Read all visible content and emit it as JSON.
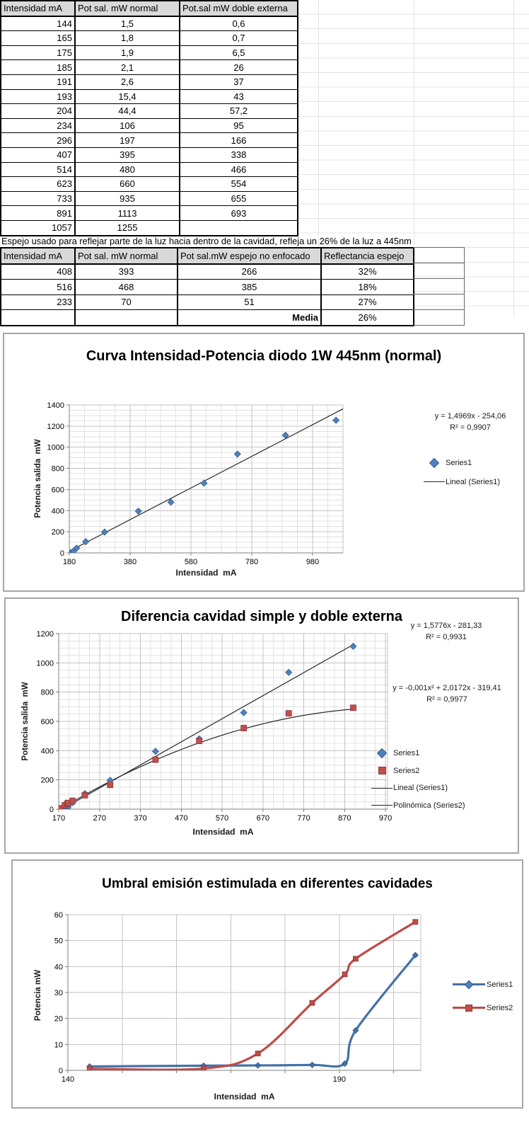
{
  "colors": {
    "series1": "#4F81BD",
    "series2": "#C0504D",
    "cell_gray": "#D9D9D9",
    "cell_blue": "#DCE6F1",
    "cell_pink": "#F2DCDB",
    "trendline": "#262626"
  },
  "table1": {
    "headers": [
      "Intensidad mA",
      "Pot sal. mW normal",
      "Pot.sal mW doble externa"
    ],
    "rows": [
      [
        "144",
        "1,5",
        "0,6"
      ],
      [
        "165",
        "1,8",
        "0,7"
      ],
      [
        "175",
        "1,9",
        "6,5"
      ],
      [
        "185",
        "2,1",
        "26"
      ],
      [
        "191",
        "2,6",
        "37"
      ],
      [
        "193",
        "15,4",
        "43"
      ],
      [
        "204",
        "44,4",
        "57,2"
      ],
      [
        "234",
        "106",
        "95"
      ],
      [
        "296",
        "197",
        "166"
      ],
      [
        "407",
        "395",
        "338"
      ],
      [
        "514",
        "480",
        "466"
      ],
      [
        "623",
        "660",
        "554"
      ],
      [
        "733",
        "935",
        "655"
      ],
      [
        "891",
        "1113",
        "693"
      ],
      [
        "1057",
        "1255",
        ""
      ]
    ]
  },
  "note": "Espejo usado para reflejar parte de la luz hacia dentro de la cavidad, refleja un 26% de la luz a 445nm",
  "table2": {
    "headers": [
      "Intensidad mA",
      "Pot sal. mW normal",
      "Pot sal.mW espejo no enfocado",
      "Reflectancia espejo"
    ],
    "rows": [
      [
        "408",
        "393",
        "266",
        "32%"
      ],
      [
        "516",
        "468",
        "385",
        "18%"
      ],
      [
        "233",
        "70",
        "51",
        "27%"
      ]
    ],
    "footer_label": "Media",
    "footer_value": "26%"
  },
  "chart_data": [
    {
      "type": "scatter",
      "title": "Curva Intensidad-Potencia diodo 1W 445nm (normal)",
      "xlabel": "Intensidad  mA",
      "ylabel": "Potencia salida  mW",
      "xlim": [
        180,
        1080
      ],
      "ylim": [
        0,
        1400
      ],
      "xticks": [
        180,
        380,
        580,
        780,
        980
      ],
      "yticks": [
        0,
        200,
        400,
        600,
        800,
        1000,
        1200,
        1400
      ],
      "grid": "minor",
      "legend_position": "right",
      "series": [
        {
          "name": "Series1",
          "marker": "diamond",
          "color": "#4F81BD",
          "x": [
            144,
            165,
            175,
            185,
            191,
            193,
            204,
            234,
            296,
            407,
            514,
            623,
            733,
            891,
            1057
          ],
          "y": [
            1.5,
            1.8,
            1.9,
            2.1,
            2.6,
            15.4,
            44.4,
            106,
            197,
            395,
            480,
            660,
            935,
            1113,
            1255
          ]
        }
      ],
      "trendlines": [
        {
          "name": "Lineal (Series1)",
          "kind": "linear",
          "coef": [
            1.4969,
            -254.06
          ],
          "equation": "y = 1,4969x - 254,06",
          "r2": "R² = 0,9907",
          "x_range": [
            144,
            1080
          ]
        }
      ],
      "legend": [
        "Series1",
        "Lineal (Series1)"
      ]
    },
    {
      "type": "scatter",
      "title": "Diferencia cavidad simple y doble externa",
      "xlabel": "Intensidad  mA",
      "ylabel": "Potencia salida  mW",
      "xlim": [
        170,
        975
      ],
      "ylim": [
        0,
        1200
      ],
      "xticks": [
        170,
        270,
        370,
        470,
        570,
        670,
        770,
        870,
        970
      ],
      "yticks": [
        0,
        200,
        400,
        600,
        800,
        1000,
        1200
      ],
      "grid": "minor",
      "legend_position": "right",
      "series": [
        {
          "name": "Series1",
          "marker": "diamond",
          "color": "#4F81BD",
          "x": [
            144,
            165,
            175,
            185,
            191,
            193,
            204,
            234,
            296,
            407,
            514,
            623,
            733,
            891,
            1057
          ],
          "y": [
            1.5,
            1.8,
            1.9,
            2.1,
            2.6,
            15.4,
            44.4,
            106,
            197,
            395,
            480,
            660,
            935,
            1113,
            1255
          ]
        },
        {
          "name": "Series2",
          "marker": "square",
          "color": "#C0504D",
          "x": [
            144,
            165,
            175,
            185,
            191,
            193,
            204,
            234,
            296,
            407,
            514,
            623,
            733,
            891
          ],
          "y": [
            0.6,
            0.7,
            6.5,
            26,
            37,
            43,
            57.2,
            95,
            166,
            338,
            466,
            554,
            655,
            693
          ]
        }
      ],
      "trendlines": [
        {
          "name": "Lineal (Series1)",
          "kind": "linear",
          "coef": [
            1.5776,
            -281.33
          ],
          "equation": "y = 1,5776x - 281,33",
          "r2": "R² = 0,9931",
          "x_range": [
            144,
            891
          ]
        },
        {
          "name": "Polinómica (Series2)",
          "kind": "poly2",
          "coef": [
            -0.001,
            2.0172,
            -319.41
          ],
          "equation": "y = -0,001x² + 2,0172x - 319,41",
          "r2": "R² = 0,9977",
          "x_range": [
            144,
            891
          ]
        }
      ],
      "legend": [
        "Series1",
        "Series2",
        "Lineal (Series1)",
        "Polinómica (Series2)"
      ]
    },
    {
      "type": "line",
      "title": "Umbral emisión estimulada en diferentes cavidades",
      "xlabel": "Intensidad  mA",
      "ylabel": "Potencia mW",
      "xlim": [
        140,
        205
      ],
      "ylim": [
        0,
        60
      ],
      "xticks": [
        140,
        190
      ],
      "yticks": [
        0,
        10,
        20,
        30,
        40,
        50,
        60
      ],
      "x_grid_step": 10,
      "grid": "major",
      "legend_position": "right",
      "series": [
        {
          "name": "Series1",
          "marker": "diamond",
          "color": "#4472A8",
          "x": [
            144,
            165,
            175,
            185,
            191,
            193,
            204
          ],
          "y": [
            1.5,
            1.8,
            1.9,
            2.1,
            2.6,
            15.4,
            44.4
          ]
        },
        {
          "name": "Series2",
          "marker": "square",
          "color": "#BE4B48",
          "x": [
            144,
            165,
            175,
            185,
            191,
            193,
            204
          ],
          "y": [
            0.6,
            0.7,
            6.5,
            26,
            37,
            43,
            57.2
          ]
        }
      ],
      "legend": [
        "Series1",
        "Series2"
      ]
    }
  ]
}
